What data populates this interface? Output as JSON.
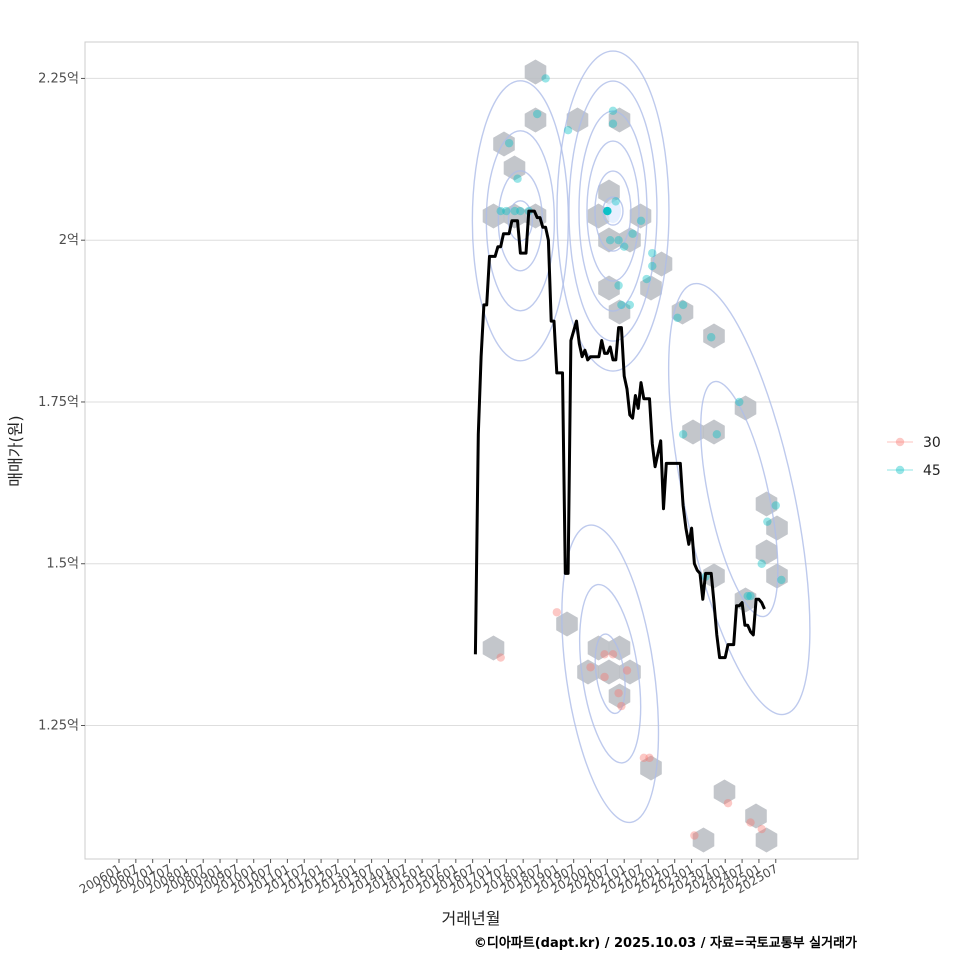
{
  "chart_data": {
    "type": "scatter",
    "xlabel": "거래년월",
    "ylabel": "매매가(원)",
    "caption": "©디아파트(dapt.kr) / 2025.10.03 / 자료=국토교통부 실거래가",
    "x_ticks": [
      "200601",
      "200607",
      "200701",
      "200707",
      "200801",
      "200807",
      "200901",
      "200907",
      "201001",
      "201007",
      "201101",
      "201107",
      "201201",
      "201207",
      "201301",
      "201307",
      "201401",
      "201407",
      "201501",
      "201507",
      "201601",
      "201607",
      "201701",
      "201707",
      "201801",
      "201807",
      "201901",
      "201907",
      "202001",
      "202007",
      "202101",
      "202107",
      "202201",
      "202207",
      "202301",
      "202307",
      "202401",
      "202407",
      "202501",
      "202507"
    ],
    "y_ticks": [
      {
        "value": 1.25,
        "label": "1.25억"
      },
      {
        "value": 1.5,
        "label": "1.5억"
      },
      {
        "value": 1.75,
        "label": "1.75억"
      },
      {
        "value": 2.0,
        "label": "2억"
      },
      {
        "value": 2.25,
        "label": "2.25억"
      }
    ],
    "ylim": [
      1.0437,
      2.3063
    ],
    "legend": {
      "position": "right",
      "entries": [
        {
          "name": "30",
          "color": "#F8766D"
        },
        {
          "name": "45",
          "color": "#00BFC4"
        }
      ]
    },
    "grid": true,
    "series": [
      {
        "name": "30",
        "color": "#F8766D",
        "points": [
          [
            "2017-05",
            1.355
          ],
          [
            "2019-01",
            1.425
          ],
          [
            "2020-01",
            1.34
          ],
          [
            "2020-06",
            1.36
          ],
          [
            "2020-06",
            1.325
          ],
          [
            "2020-09",
            1.36
          ],
          [
            "2020-11",
            1.3
          ],
          [
            "2020-12",
            1.28
          ],
          [
            "2021-02",
            1.335
          ],
          [
            "2021-08",
            1.2
          ],
          [
            "2021-10",
            1.2
          ],
          [
            "2023-02",
            1.08
          ],
          [
            "2024-02",
            1.13
          ],
          [
            "2024-10",
            1.1
          ],
          [
            "2025-02",
            1.09
          ]
        ]
      },
      {
        "name": "45",
        "color": "#00BFC4",
        "points": [
          [
            "2017-05",
            2.045
          ],
          [
            "2017-07",
            2.045
          ],
          [
            "2017-08",
            2.15
          ],
          [
            "2017-10",
            2.045
          ],
          [
            "2017-11",
            2.095
          ],
          [
            "2017-12",
            2.045
          ],
          [
            "2018-03",
            2.045
          ],
          [
            "2018-06",
            2.195
          ],
          [
            "2018-09",
            2.25
          ],
          [
            "2019-05",
            2.17
          ],
          [
            "2020-07",
            2.045
          ],
          [
            "2020-08",
            2.0
          ],
          [
            "2020-09",
            2.2
          ],
          [
            "2020-09",
            2.18
          ],
          [
            "2020-10",
            2.06
          ],
          [
            "2020-11",
            2.0
          ],
          [
            "2020-11",
            1.93
          ],
          [
            "2020-12",
            1.9
          ],
          [
            "2021-01",
            1.99
          ],
          [
            "2021-03",
            1.9
          ],
          [
            "2021-04",
            2.01
          ],
          [
            "2021-07",
            2.03
          ],
          [
            "2021-09",
            1.94
          ],
          [
            "2021-11",
            1.96
          ],
          [
            "2021-11",
            1.98
          ],
          [
            "2022-08",
            1.88
          ],
          [
            "2022-10",
            1.9
          ],
          [
            "2022-10",
            1.7
          ],
          [
            "2023-06",
            1.48
          ],
          [
            "2023-08",
            1.85
          ],
          [
            "2023-10",
            1.7
          ],
          [
            "2024-06",
            1.75
          ],
          [
            "2024-09",
            1.45
          ],
          [
            "2024-10",
            1.45
          ],
          [
            "2025-02",
            1.5
          ],
          [
            "2025-04",
            1.565
          ],
          [
            "2025-07",
            1.59
          ],
          [
            "2025-09",
            1.475
          ]
        ]
      }
    ],
    "trend_line": [
      [
        "2016-08",
        1.36
      ],
      [
        "2016-09",
        1.7
      ],
      [
        "2016-10",
        1.82
      ],
      [
        "2016-11",
        1.9
      ],
      [
        "2016-12",
        1.9
      ],
      [
        "2017-01",
        1.975
      ],
      [
        "2017-02",
        1.975
      ],
      [
        "2017-03",
        1.975
      ],
      [
        "2017-04",
        1.99
      ],
      [
        "2017-05",
        1.99
      ],
      [
        "2017-06",
        2.01
      ],
      [
        "2017-07",
        2.01
      ],
      [
        "2017-08",
        2.01
      ],
      [
        "2017-09",
        2.03
      ],
      [
        "2017-10",
        2.03
      ],
      [
        "2017-11",
        2.03
      ],
      [
        "2017-12",
        1.98
      ],
      [
        "2018-01",
        1.98
      ],
      [
        "2018-02",
        1.98
      ],
      [
        "2018-03",
        2.045
      ],
      [
        "2018-04",
        2.045
      ],
      [
        "2018-05",
        2.045
      ],
      [
        "2018-06",
        2.035
      ],
      [
        "2018-07",
        2.035
      ],
      [
        "2018-08",
        2.02
      ],
      [
        "2018-09",
        2.02
      ],
      [
        "2018-10",
        2.0
      ],
      [
        "2018-11",
        1.875
      ],
      [
        "2018-12",
        1.875
      ],
      [
        "2019-01",
        1.795
      ],
      [
        "2019-02",
        1.795
      ],
      [
        "2019-03",
        1.795
      ],
      [
        "2019-04",
        1.485
      ],
      [
        "2019-05",
        1.485
      ],
      [
        "2019-06",
        1.845
      ],
      [
        "2019-07",
        1.86
      ],
      [
        "2019-08",
        1.875
      ],
      [
        "2019-09",
        1.84
      ],
      [
        "2019-10",
        1.82
      ],
      [
        "2019-11",
        1.83
      ],
      [
        "2019-12",
        1.815
      ],
      [
        "2020-01",
        1.82
      ],
      [
        "2020-02",
        1.82
      ],
      [
        "2020-03",
        1.82
      ],
      [
        "2020-04",
        1.82
      ],
      [
        "2020-05",
        1.845
      ],
      [
        "2020-06",
        1.825
      ],
      [
        "2020-07",
        1.825
      ],
      [
        "2020-08",
        1.835
      ],
      [
        "2020-09",
        1.815
      ],
      [
        "2020-10",
        1.815
      ],
      [
        "2020-11",
        1.865
      ],
      [
        "2020-12",
        1.865
      ],
      [
        "2021-01",
        1.79
      ],
      [
        "2021-02",
        1.77
      ],
      [
        "2021-03",
        1.73
      ],
      [
        "2021-04",
        1.725
      ],
      [
        "2021-05",
        1.76
      ],
      [
        "2021-06",
        1.74
      ],
      [
        "2021-07",
        1.78
      ],
      [
        "2021-08",
        1.755
      ],
      [
        "2021-09",
        1.755
      ],
      [
        "2021-10",
        1.755
      ],
      [
        "2021-11",
        1.685
      ],
      [
        "2021-12",
        1.65
      ],
      [
        "2022-01",
        1.67
      ],
      [
        "2022-02",
        1.69
      ],
      [
        "2022-03",
        1.585
      ],
      [
        "2022-04",
        1.655
      ],
      [
        "2022-05",
        1.655
      ],
      [
        "2022-06",
        1.655
      ],
      [
        "2022-07",
        1.655
      ],
      [
        "2022-08",
        1.655
      ],
      [
        "2022-09",
        1.655
      ],
      [
        "2022-10",
        1.59
      ],
      [
        "2022-11",
        1.555
      ],
      [
        "2022-12",
        1.53
      ],
      [
        "2023-01",
        1.555
      ],
      [
        "2023-02",
        1.5
      ],
      [
        "2023-03",
        1.49
      ],
      [
        "2023-04",
        1.485
      ],
      [
        "2023-05",
        1.445
      ],
      [
        "2023-06",
        1.485
      ],
      [
        "2023-07",
        1.485
      ],
      [
        "2023-08",
        1.485
      ],
      [
        "2023-09",
        1.44
      ],
      [
        "2023-10",
        1.39
      ],
      [
        "2023-11",
        1.355
      ],
      [
        "2023-12",
        1.355
      ],
      [
        "2024-01",
        1.355
      ],
      [
        "2024-02",
        1.375
      ],
      [
        "2024-03",
        1.375
      ],
      [
        "2024-04",
        1.375
      ],
      [
        "2024-05",
        1.435
      ],
      [
        "2024-06",
        1.435
      ],
      [
        "2024-07",
        1.44
      ],
      [
        "2024-08",
        1.405
      ],
      [
        "2024-09",
        1.405
      ],
      [
        "2024-10",
        1.395
      ],
      [
        "2024-11",
        1.39
      ],
      [
        "2024-12",
        1.445
      ],
      [
        "2025-01",
        1.445
      ],
      [
        "2025-02",
        1.44
      ],
      [
        "2025-03",
        1.43
      ]
    ]
  }
}
